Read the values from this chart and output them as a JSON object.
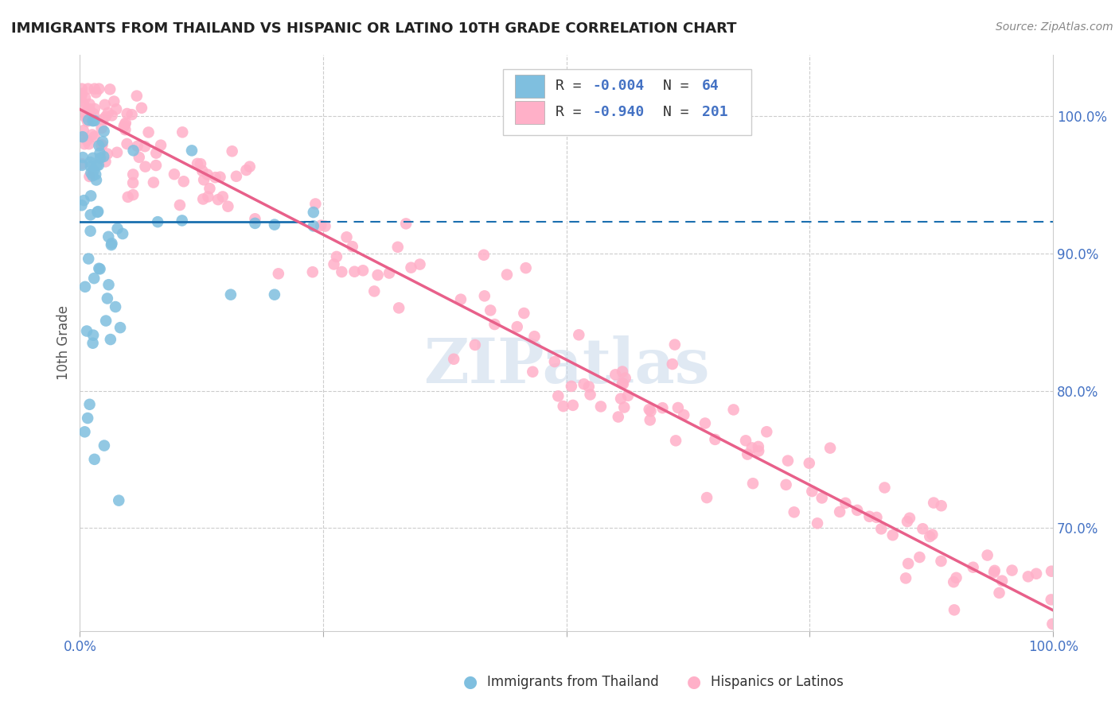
{
  "title": "IMMIGRANTS FROM THAILAND VS HISPANIC OR LATINO 10TH GRADE CORRELATION CHART",
  "source": "Source: ZipAtlas.com",
  "ylabel": "10th Grade",
  "xlim": [
    0.0,
    1.0
  ],
  "ylim": [
    0.625,
    1.045
  ],
  "blue_R": "-0.004",
  "blue_N": "64",
  "pink_R": "-0.940",
  "pink_N": "201",
  "blue_color": "#7fbfdf",
  "pink_color": "#ffb0c8",
  "blue_line_color": "#1a6faf",
  "pink_line_color": "#e8608a",
  "watermark": "ZIPatlas",
  "legend_label_blue": "Immigrants from Thailand",
  "legend_label_pink": "Hispanics or Latinos",
  "grid_color": "#cccccc",
  "text_color": "#4472c4",
  "blue_trend_y": 0.923,
  "pink_trend_start": 1.005,
  "pink_trend_end": 0.64
}
